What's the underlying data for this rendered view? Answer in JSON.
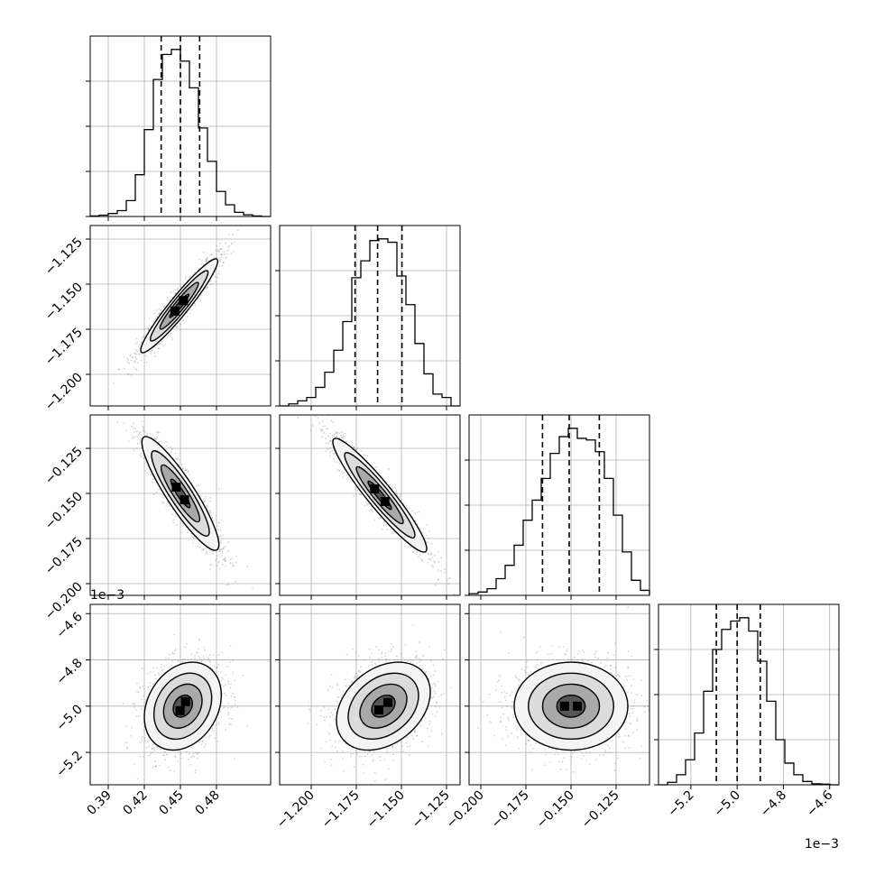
{
  "chart_data": {
    "type": "corner",
    "parameters": [
      {
        "range": [
          0.375,
          0.525
        ],
        "ticks": [
          0.39,
          0.42,
          0.45,
          0.48
        ],
        "tick_labels": [
          "0.39",
          "0.42",
          "0.45",
          "0.48"
        ],
        "offset": "",
        "quantiles": [
          0.434,
          0.45,
          0.466
        ],
        "histogram": [
          0.003,
          0.008,
          0.018,
          0.035,
          0.095,
          0.25,
          0.52,
          0.82,
          0.97,
          1.0,
          0.93,
          0.77,
          0.53,
          0.33,
          0.15,
          0.07,
          0.025,
          0.01,
          0.003,
          0.0
        ]
      },
      {
        "range": [
          -1.2175,
          -1.1175
        ],
        "ticks": [
          -1.2,
          -1.175,
          -1.15,
          -1.125
        ],
        "tick_labels": [
          "−1.200",
          "−1.175",
          "−1.150",
          "−1.125"
        ],
        "offset": "",
        "quantiles": [
          -1.1757,
          -1.1632,
          -1.1497
        ],
        "histogram": [
          0.0,
          0.012,
          0.03,
          0.05,
          0.11,
          0.2,
          0.33,
          0.5,
          0.76,
          0.86,
          0.98,
          0.99,
          0.97,
          0.77,
          0.6,
          0.37,
          0.19,
          0.07,
          0.05,
          0.0
        ]
      },
      {
        "range": [
          -0.2065,
          -0.1065
        ],
        "ticks": [
          -0.2,
          -0.175,
          -0.15,
          -0.125
        ],
        "tick_labels": [
          "−0.200",
          "−0.175",
          "−0.150",
          "−0.125"
        ],
        "offset": "",
        "quantiles": [
          -0.1658,
          -0.151,
          -0.1343
        ],
        "histogram": [
          0.01,
          0.02,
          0.04,
          0.1,
          0.18,
          0.3,
          0.45,
          0.57,
          0.7,
          0.85,
          0.95,
          1.0,
          0.94,
          0.93,
          0.86,
          0.7,
          0.48,
          0.26,
          0.09,
          0.03
        ]
      },
      {
        "range": [
          -5.34,
          -4.56
        ],
        "ticks": [
          -5.2,
          -5.0,
          -4.8,
          -4.6
        ],
        "tick_labels": [
          "−5.2",
          "−5.0",
          "−4.8",
          "−4.6"
        ],
        "offset": "1e−3",
        "quantiles": [
          -5.09,
          -5.0,
          -4.9
        ],
        "histogram": [
          0.0,
          0.015,
          0.06,
          0.15,
          0.31,
          0.56,
          0.81,
          0.93,
          0.98,
          1.0,
          0.92,
          0.74,
          0.5,
          0.27,
          0.13,
          0.06,
          0.02,
          0.006,
          0.004,
          0.0
        ]
      }
    ],
    "pairs": [
      {
        "x": 0,
        "y": 1,
        "center": [
          0.449,
          -1.162
        ],
        "corr": 0.95
      },
      {
        "x": 0,
        "y": 2,
        "center": [
          0.45,
          -0.15
        ],
        "corr": -0.9
      },
      {
        "x": 1,
        "y": 2,
        "center": [
          -1.162,
          -0.151
        ],
        "corr": -0.94
      },
      {
        "x": 0,
        "y": 3,
        "center": [
          0.452,
          -5.0
        ],
        "corr": 0.25
      },
      {
        "x": 1,
        "y": 3,
        "center": [
          -1.16,
          -5.0
        ],
        "corr": 0.32
      },
      {
        "x": 2,
        "y": 3,
        "center": [
          -0.15,
          -5.0
        ],
        "corr": 0.0
      }
    ],
    "grid": true,
    "colors": {
      "line": "#000000",
      "grid": "#b0b0b0",
      "points": "#888888"
    }
  }
}
